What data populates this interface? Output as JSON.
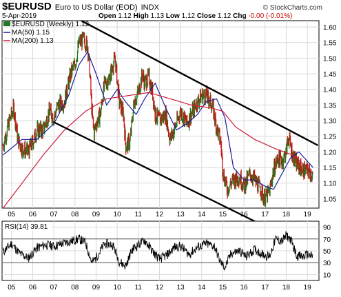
{
  "header": {
    "symbol": "$EURUSD",
    "description": "Euro to US Dollar (EOD)",
    "exchange": "INDX",
    "date": "5-Apr-2019",
    "open_label": "Open",
    "open": "1.12",
    "high_label": "High",
    "high": "1.13",
    "low_label": "Low",
    "low": "1.12",
    "close_label": "Close",
    "close": "1.12",
    "chg_label": "Chg",
    "chg": "-0.00 (-0.01%)",
    "brand": "© StockCharts.com"
  },
  "legend": {
    "series_label": "$EURUSD (Weekly) 1.12",
    "ma50_label": "MA(50) 1.15",
    "ma200_label": "MA(200) 1.13",
    "rsi_label": "RSI(14) 39.81"
  },
  "colors": {
    "up": "#1f7a1f",
    "down": "#cc1111",
    "ma50": "#1a1a99",
    "ma200": "#cc1a3a",
    "channel": "#000000",
    "rsi": "#000000",
    "grid": "#d9d9d9"
  },
  "chart_data": [
    {
      "type": "line",
      "title": "$EURUSD Euro to US Dollar (EOD) INDX",
      "x_ticks": [
        "05",
        "06",
        "07",
        "08",
        "09",
        "10",
        "11",
        "12",
        "13",
        "14",
        "15",
        "16",
        "17",
        "18",
        "19"
      ],
      "y_ticks": [
        "1.05",
        "1.10",
        "1.15",
        "1.20",
        "1.25",
        "1.30",
        "1.35",
        "1.40",
        "1.45",
        "1.50",
        "1.55",
        "1.60"
      ],
      "ylim": [
        1.02,
        1.62
      ],
      "xlim": [
        2004.55,
        2019.55
      ],
      "grid": true,
      "legend_position": "top-left",
      "series": [
        {
          "name": "$EURUSD (Weekly) 1.12",
          "x": [
            2004.6,
            2004.9,
            2005.1,
            2005.3,
            2005.5,
            2005.8,
            2006.0,
            2006.2,
            2006.5,
            2006.8,
            2007.0,
            2007.2,
            2007.5,
            2007.8,
            2008.0,
            2008.2,
            2008.4,
            2008.6,
            2008.7,
            2008.8,
            2008.9,
            2009.0,
            2009.2,
            2009.4,
            2009.6,
            2009.9,
            2010.1,
            2010.3,
            2010.4,
            2010.6,
            2010.8,
            2011.0,
            2011.2,
            2011.3,
            2011.5,
            2011.7,
            2011.8,
            2012.0,
            2012.3,
            2012.5,
            2012.8,
            2013.0,
            2013.3,
            2013.5,
            2013.8,
            2014.0,
            2014.2,
            2014.5,
            2014.7,
            2014.9,
            2015.0,
            2015.2,
            2015.5,
            2015.8,
            2016.0,
            2016.3,
            2016.5,
            2016.8,
            2016.95,
            2017.2,
            2017.4,
            2017.6,
            2017.8,
            2018.0,
            2018.1,
            2018.3,
            2018.5,
            2018.8,
            2019.0,
            2019.2,
            2019.27
          ],
          "y": [
            1.22,
            1.3,
            1.34,
            1.24,
            1.21,
            1.2,
            1.23,
            1.27,
            1.27,
            1.33,
            1.31,
            1.35,
            1.36,
            1.45,
            1.48,
            1.55,
            1.56,
            1.54,
            1.46,
            1.33,
            1.26,
            1.29,
            1.32,
            1.42,
            1.43,
            1.5,
            1.36,
            1.32,
            1.22,
            1.23,
            1.36,
            1.39,
            1.45,
            1.42,
            1.44,
            1.38,
            1.32,
            1.3,
            1.32,
            1.24,
            1.29,
            1.33,
            1.29,
            1.32,
            1.36,
            1.38,
            1.38,
            1.35,
            1.28,
            1.23,
            1.14,
            1.08,
            1.11,
            1.12,
            1.09,
            1.13,
            1.11,
            1.08,
            1.05,
            1.07,
            1.14,
            1.18,
            1.17,
            1.2,
            1.25,
            1.19,
            1.16,
            1.14,
            1.14,
            1.13,
            1.12
          ]
        },
        {
          "name": "MA(50) 1.15",
          "x": [
            2004.6,
            2005.5,
            2006.2,
            2007.0,
            2007.7,
            2008.2,
            2008.6,
            2009.0,
            2009.5,
            2010.0,
            2010.4,
            2010.9,
            2011.3,
            2011.8,
            2012.3,
            2012.8,
            2013.3,
            2013.8,
            2014.2,
            2014.7,
            2015.1,
            2015.5,
            2016.0,
            2016.5,
            2017.0,
            2017.4,
            2017.8,
            2018.2,
            2018.6,
            2019.0,
            2019.27
          ],
          "y": [
            1.19,
            1.24,
            1.24,
            1.29,
            1.38,
            1.48,
            1.52,
            1.45,
            1.35,
            1.4,
            1.36,
            1.32,
            1.37,
            1.42,
            1.34,
            1.27,
            1.29,
            1.32,
            1.36,
            1.37,
            1.31,
            1.15,
            1.11,
            1.11,
            1.09,
            1.08,
            1.13,
            1.18,
            1.2,
            1.17,
            1.15
          ]
        },
        {
          "name": "MA(200) 1.13",
          "x": [
            2004.6,
            2005.5,
            2006.5,
            2007.5,
            2008.5,
            2009.5,
            2010.5,
            2011.5,
            2012.5,
            2013.5,
            2014.5,
            2015.0,
            2015.6,
            2016.5,
            2017.5,
            2018.3,
            2019.0,
            2019.27
          ],
          "y": [
            1.02,
            1.1,
            1.19,
            1.27,
            1.33,
            1.37,
            1.38,
            1.39,
            1.37,
            1.35,
            1.34,
            1.33,
            1.28,
            1.24,
            1.21,
            1.19,
            1.15,
            1.13
          ]
        }
      ],
      "annotations": [
        {
          "type": "trendline",
          "from": [
            2008.3,
            1.62
          ],
          "to": [
            2019.5,
            1.221
          ]
        },
        {
          "type": "trendline",
          "from": [
            2007.0,
            1.295
          ],
          "to": [
            2018.9,
            0.898
          ]
        }
      ]
    },
    {
      "type": "line",
      "title": "RSI(14) 39.81",
      "x_ticks": [
        "05",
        "06",
        "07",
        "08",
        "09",
        "10",
        "11",
        "12",
        "13",
        "14",
        "15",
        "16",
        "17",
        "18",
        "19"
      ],
      "y_ticks": [
        "10",
        "30",
        "50",
        "70",
        "90"
      ],
      "ylim": [
        0,
        100
      ],
      "xlim": [
        2004.55,
        2019.55
      ],
      "reference_lines": [
        70,
        30
      ],
      "series": [
        {
          "name": "RSI(14)",
          "x": [
            2004.6,
            2005.0,
            2005.4,
            2005.8,
            2006.2,
            2006.6,
            2007.0,
            2007.4,
            2007.8,
            2008.2,
            2008.5,
            2008.8,
            2009.0,
            2009.4,
            2009.8,
            2010.1,
            2010.4,
            2010.7,
            2011.0,
            2011.3,
            2011.7,
            2012.0,
            2012.4,
            2012.7,
            2013.0,
            2013.4,
            2013.8,
            2014.2,
            2014.6,
            2014.9,
            2015.1,
            2015.4,
            2015.8,
            2016.1,
            2016.5,
            2016.9,
            2017.2,
            2017.5,
            2017.8,
            2018.0,
            2018.2,
            2018.5,
            2018.8,
            2019.0,
            2019.27
          ],
          "y": [
            48,
            62,
            45,
            38,
            55,
            60,
            58,
            62,
            66,
            70,
            64,
            30,
            38,
            62,
            60,
            32,
            24,
            52,
            60,
            68,
            48,
            36,
            44,
            56,
            58,
            44,
            56,
            62,
            58,
            30,
            22,
            46,
            50,
            40,
            52,
            44,
            40,
            70,
            66,
            76,
            70,
            42,
            40,
            44,
            40
          ]
        }
      ]
    }
  ]
}
